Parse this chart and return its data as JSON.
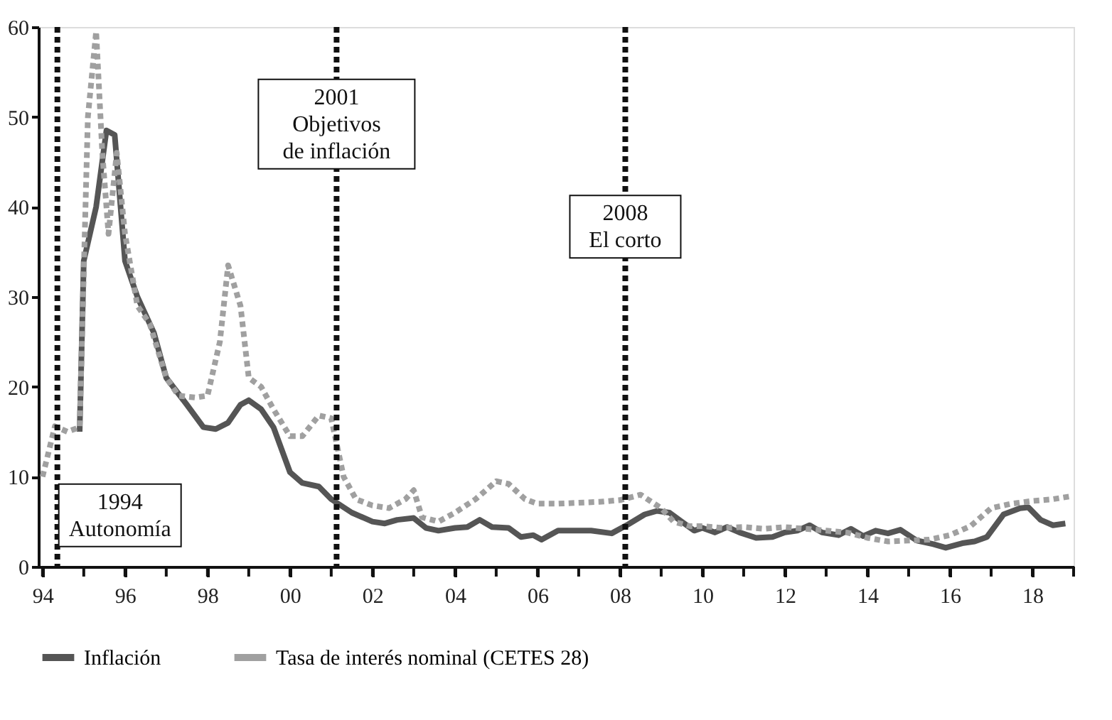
{
  "chart_data": {
    "type": "line",
    "xlim": [
      1993.9,
      2019.0
    ],
    "xticks": [
      {
        "value": 1994,
        "label": "94"
      },
      {
        "value": 1995,
        "label": null
      },
      {
        "value": 1996,
        "label": "96"
      },
      {
        "value": 1997,
        "label": null
      },
      {
        "value": 1998,
        "label": "98"
      },
      {
        "value": 1999,
        "label": null
      },
      {
        "value": 2000,
        "label": "00"
      },
      {
        "value": 2001,
        "label": null
      },
      {
        "value": 2002,
        "label": "02"
      },
      {
        "value": 2003,
        "label": null
      },
      {
        "value": 2004,
        "label": "04"
      },
      {
        "value": 2005,
        "label": null
      },
      {
        "value": 2006,
        "label": "06"
      },
      {
        "value": 2007,
        "label": null
      },
      {
        "value": 2008,
        "label": "08"
      },
      {
        "value": 2009,
        "label": null
      },
      {
        "value": 2010,
        "label": "10"
      },
      {
        "value": 2011,
        "label": null
      },
      {
        "value": 2012,
        "label": "12"
      },
      {
        "value": 2013,
        "label": null
      },
      {
        "value": 2014,
        "label": "14"
      },
      {
        "value": 2015,
        "label": null
      },
      {
        "value": 2016,
        "label": "16"
      },
      {
        "value": 2017,
        "label": null
      },
      {
        "value": 2018,
        "label": "18"
      },
      {
        "value": 2019,
        "label": null
      }
    ],
    "ylim": [
      0,
      60
    ],
    "yticks": [
      0,
      10,
      20,
      30,
      40,
      50,
      60
    ],
    "grid": false,
    "legend": "bottom",
    "marker": "none",
    "series": [
      {
        "name": "Inflación",
        "color": "#555555",
        "line_style": "solid",
        "x": [
          1994.9,
          1995.0,
          1995.3,
          1995.55,
          1995.75,
          1996.0,
          1996.3,
          1996.7,
          1997.0,
          1997.5,
          1997.9,
          1998.2,
          1998.5,
          1998.8,
          1999.0,
          1999.3,
          1999.6,
          2000.0,
          2000.3,
          2000.7,
          2001.0,
          2001.5,
          2002.0,
          2002.3,
          2002.6,
          2003.0,
          2003.3,
          2003.6,
          2004.0,
          2004.3,
          2004.6,
          2004.9,
          2005.3,
          2005.6,
          2005.9,
          2006.1,
          2006.5,
          2006.9,
          2007.3,
          2007.8,
          2008.2,
          2008.6,
          2008.9,
          2009.2,
          2009.5,
          2009.8,
          2010.0,
          2010.3,
          2010.6,
          2010.9,
          2011.3,
          2011.7,
          2012.0,
          2012.3,
          2012.6,
          2012.9,
          2013.3,
          2013.6,
          2013.9,
          2014.2,
          2014.5,
          2014.8,
          2015.2,
          2015.6,
          2015.9,
          2016.3,
          2016.6,
          2016.9,
          2017.3,
          2017.7,
          2017.9,
          2018.2,
          2018.5,
          2018.8
        ],
        "values": [
          15,
          34,
          40,
          48.5,
          48,
          34,
          30,
          26,
          21,
          18,
          15.5,
          15.3,
          16,
          18,
          18.5,
          17.5,
          15.5,
          10.5,
          9.3,
          8.9,
          7.5,
          6,
          5,
          4.8,
          5.2,
          5.4,
          4.3,
          4.0,
          4.3,
          4.4,
          5.2,
          4.4,
          4.3,
          3.3,
          3.5,
          3.0,
          4.0,
          4.0,
          4.0,
          3.7,
          4.7,
          5.8,
          6.2,
          6.0,
          5.0,
          4.0,
          4.3,
          3.8,
          4.4,
          3.8,
          3.2,
          3.3,
          3.8,
          4.0,
          4.6,
          3.8,
          3.5,
          4.2,
          3.4,
          4.0,
          3.7,
          4.1,
          2.9,
          2.5,
          2.1,
          2.6,
          2.8,
          3.3,
          5.8,
          6.5,
          6.6,
          5.2,
          4.6,
          4.8
        ]
      },
      {
        "name": "Tasa de interés nominal (CETES 28)",
        "color": "#a0a0a0",
        "line_style": "dotted",
        "x": [
          1994.0,
          1994.3,
          1994.6,
          1994.9,
          1995.1,
          1995.3,
          1995.45,
          1995.6,
          1995.8,
          1996.0,
          1996.3,
          1996.6,
          1997.0,
          1997.3,
          1997.7,
          1998.0,
          1998.3,
          1998.5,
          1998.8,
          1999.0,
          1999.3,
          1999.6,
          2000.0,
          2000.3,
          2000.7,
          2001.0,
          2001.3,
          2001.6,
          2002.0,
          2002.4,
          2002.8,
          2003.0,
          2003.2,
          2003.6,
          2004.0,
          2004.5,
          2005.0,
          2005.3,
          2005.7,
          2006.0,
          2006.5,
          2007.0,
          2007.5,
          2008.0,
          2008.5,
          2009.0,
          2009.3,
          2009.7,
          2010.0,
          2010.5,
          2011.0,
          2011.5,
          2012.0,
          2012.5,
          2013.0,
          2013.5,
          2014.0,
          2014.5,
          2015.0,
          2015.5,
          2016.0,
          2016.5,
          2017.0,
          2017.5,
          2018.0,
          2018.5,
          2018.9
        ],
        "values": [
          10,
          15.6,
          15,
          15.5,
          50,
          59.5,
          46,
          37,
          46,
          37,
          29,
          27,
          21,
          19,
          18.8,
          19,
          25,
          33.5,
          29,
          21,
          20,
          17.5,
          14.5,
          14.5,
          16.8,
          16.5,
          10,
          7.5,
          6.8,
          6.5,
          7.5,
          8.5,
          5.5,
          5.0,
          6.0,
          7.5,
          9.5,
          9.2,
          7.5,
          7.0,
          7.0,
          7.1,
          7.2,
          7.4,
          8.0,
          6.5,
          5.0,
          4.5,
          4.5,
          4.3,
          4.4,
          4.2,
          4.4,
          4.2,
          4.0,
          3.8,
          3.2,
          2.8,
          2.9,
          3.0,
          3.5,
          4.5,
          6.5,
          7.0,
          7.3,
          7.5,
          7.8
        ]
      }
    ],
    "ref_lines": [
      {
        "axis": "x",
        "value": 1994.36,
        "label": "1994\nAutonomía",
        "color": "#111111",
        "line_style": "dotted"
      },
      {
        "axis": "x",
        "value": 2001.13,
        "label": "2001\nObjetivos\nde inflación",
        "color": "#111111",
        "line_style": "dotted"
      },
      {
        "axis": "x",
        "value": 2008.13,
        "label": "2008\nEl corto",
        "color": "#111111",
        "line_style": "dotted"
      }
    ]
  }
}
